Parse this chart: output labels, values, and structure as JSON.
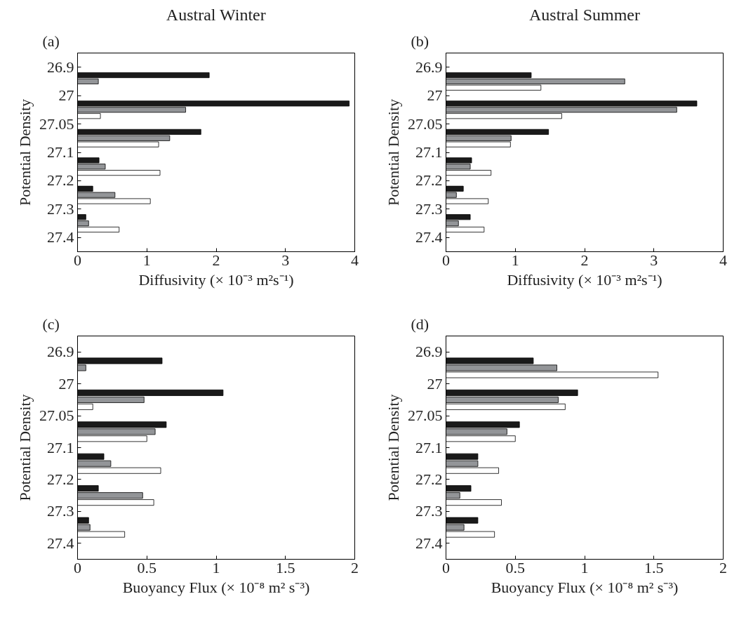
{
  "chart_data": [
    {
      "type": "bar",
      "orientation": "horizontal",
      "title": "Austral Winter",
      "annotations": [
        "(a)"
      ],
      "xlabel": "Diffusivity (× 10⁻³ m²s⁻¹)",
      "ylabel": "Potential Density",
      "categories": [
        "26.9",
        null,
        "27",
        null,
        "27.05",
        null,
        "27.1",
        null,
        "27.2",
        null,
        "27.3",
        null,
        "27.4"
      ],
      "series": [
        {
          "color": "#1a1a1a",
          "values": [
            null,
            1.9,
            null,
            3.92,
            null,
            1.78,
            null,
            0.31,
            null,
            0.22,
            null,
            0.12,
            null
          ]
        },
        {
          "color": "#939598",
          "values": [
            null,
            0.3,
            null,
            1.56,
            null,
            1.33,
            null,
            0.4,
            null,
            0.54,
            null,
            0.16,
            null
          ]
        },
        {
          "color": "#ffffff",
          "values": [
            null,
            null,
            null,
            0.33,
            null,
            1.17,
            null,
            1.19,
            null,
            1.05,
            null,
            0.6,
            null
          ]
        }
      ],
      "xlim": [
        0,
        4
      ],
      "xticks": [
        0,
        1,
        2,
        3,
        4
      ]
    },
    {
      "type": "bar",
      "orientation": "horizontal",
      "title": "Austral Summer",
      "annotations": [
        "(b)"
      ],
      "xlabel": "Diffusivity (× 10⁻³ m²s⁻¹)",
      "ylabel": "Potential Density",
      "categories": [
        "26.9",
        null,
        "27",
        null,
        "27.05",
        null,
        "27.1",
        null,
        "27.2",
        null,
        "27.3",
        null,
        "27.4"
      ],
      "series": [
        {
          "color": "#1a1a1a",
          "values": [
            null,
            1.23,
            null,
            3.62,
            null,
            1.48,
            null,
            0.37,
            null,
            0.25,
            null,
            0.35,
            null
          ]
        },
        {
          "color": "#939598",
          "values": [
            null,
            2.58,
            null,
            3.33,
            null,
            0.94,
            null,
            0.35,
            null,
            0.15,
            null,
            0.18,
            null
          ]
        },
        {
          "color": "#ffffff",
          "values": [
            null,
            1.37,
            null,
            1.67,
            null,
            0.93,
            null,
            0.65,
            null,
            0.61,
            null,
            0.55,
            null
          ]
        }
      ],
      "xlim": [
        0,
        4
      ],
      "xticks": [
        0,
        1,
        2,
        3,
        4
      ]
    },
    {
      "type": "bar",
      "orientation": "horizontal",
      "annotations": [
        "(c)"
      ],
      "xlabel": "Buoyancy Flux (× 10⁻⁸ m² s⁻³)",
      "ylabel": "Potential Density",
      "categories": [
        "26.9",
        null,
        "27",
        null,
        "27.05",
        null,
        "27.1",
        null,
        "27.2",
        null,
        "27.3",
        null,
        "27.4"
      ],
      "series": [
        {
          "color": "#1a1a1a",
          "values": [
            null,
            0.61,
            null,
            1.05,
            null,
            0.64,
            null,
            0.19,
            null,
            0.15,
            null,
            0.08,
            null
          ]
        },
        {
          "color": "#939598",
          "values": [
            null,
            0.06,
            null,
            0.48,
            null,
            0.56,
            null,
            0.24,
            null,
            0.47,
            null,
            0.09,
            null
          ]
        },
        {
          "color": "#ffffff",
          "values": [
            null,
            null,
            null,
            0.11,
            null,
            0.5,
            null,
            0.6,
            null,
            0.55,
            null,
            0.34,
            null
          ]
        }
      ],
      "xlim": [
        0,
        2
      ],
      "xticks": [
        0,
        0.5,
        1,
        1.5,
        2
      ]
    },
    {
      "type": "bar",
      "orientation": "horizontal",
      "annotations": [
        "(d)"
      ],
      "xlabel": "Buoyancy Flux (× 10⁻⁸ m² s⁻³)",
      "ylabel": "Potential Density",
      "categories": [
        "26.9",
        null,
        "27",
        null,
        "27.05",
        null,
        "27.1",
        null,
        "27.2",
        null,
        "27.3",
        null,
        "27.4"
      ],
      "series": [
        {
          "color": "#1a1a1a",
          "values": [
            null,
            0.63,
            null,
            0.95,
            null,
            0.53,
            null,
            0.23,
            null,
            0.18,
            null,
            0.23,
            null
          ]
        },
        {
          "color": "#939598",
          "values": [
            null,
            0.8,
            null,
            0.81,
            null,
            0.44,
            null,
            0.23,
            null,
            0.1,
            null,
            0.13,
            null
          ]
        },
        {
          "color": "#ffffff",
          "values": [
            null,
            1.53,
            null,
            0.86,
            null,
            0.5,
            null,
            0.38,
            null,
            0.4,
            null,
            0.35,
            null
          ]
        }
      ],
      "xlim": [
        0,
        2
      ],
      "xticks": [
        0,
        0.5,
        1,
        1.5,
        2
      ]
    }
  ]
}
